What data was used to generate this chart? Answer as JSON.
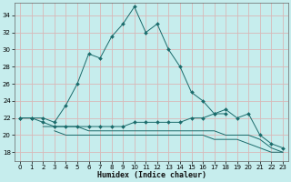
{
  "xlabel": "Humidex (Indice chaleur)",
  "xlim": [
    -0.5,
    23.5
  ],
  "ylim": [
    17,
    35.5
  ],
  "yticks": [
    18,
    20,
    22,
    24,
    26,
    28,
    30,
    32,
    34
  ],
  "xticks": [
    0,
    1,
    2,
    3,
    4,
    5,
    6,
    7,
    8,
    9,
    10,
    11,
    12,
    13,
    14,
    15,
    16,
    17,
    18,
    19,
    20,
    21,
    22,
    23
  ],
  "bg_color": "#c6eded",
  "grid_color": "#d8b8b8",
  "line_color": "#1a6b6b",
  "curves": [
    {
      "x": [
        0,
        1,
        2,
        3,
        4,
        5,
        6,
        7,
        8,
        9,
        10,
        11,
        12,
        13,
        14,
        15,
        16,
        17,
        18
      ],
      "y": [
        22,
        22,
        22,
        21.5,
        23.5,
        26,
        29.5,
        29,
        31.5,
        33,
        35,
        32,
        33,
        30,
        28,
        25,
        24,
        22.5,
        22.5
      ],
      "marker": true
    },
    {
      "x": [
        0,
        1,
        2,
        3,
        4,
        5,
        6,
        7,
        8,
        9,
        10,
        11,
        12,
        13,
        14,
        15,
        16,
        17,
        18,
        19,
        20,
        21,
        22,
        23
      ],
      "y": [
        22,
        22,
        21.5,
        21,
        21,
        21,
        21,
        21,
        21,
        21,
        21.5,
        21.5,
        21.5,
        21.5,
        21.5,
        22,
        22,
        22.5,
        23,
        22,
        22.5,
        20,
        19,
        18.5
      ],
      "marker": true
    },
    {
      "x": [
        2,
        3,
        4,
        5,
        6,
        7,
        8,
        9,
        10,
        11,
        12,
        13,
        14,
        15,
        16,
        17,
        18,
        19,
        20,
        21,
        22,
        23
      ],
      "y": [
        21,
        21,
        21,
        21,
        20.5,
        20.5,
        20.5,
        20.5,
        20.5,
        20.5,
        20.5,
        20.5,
        20.5,
        20.5,
        20.5,
        20.5,
        20,
        20,
        20,
        19.5,
        18.5,
        18
      ],
      "marker": false
    },
    {
      "x": [
        3,
        4,
        5,
        6,
        7,
        8,
        9,
        10,
        11,
        12,
        13,
        14,
        15,
        16,
        17,
        18,
        19,
        20,
        21,
        22,
        23
      ],
      "y": [
        20.5,
        20,
        20,
        20,
        20,
        20,
        20,
        20,
        20,
        20,
        20,
        20,
        20,
        20,
        19.5,
        19.5,
        19.5,
        19,
        18.5,
        18,
        18
      ],
      "marker": false
    }
  ]
}
